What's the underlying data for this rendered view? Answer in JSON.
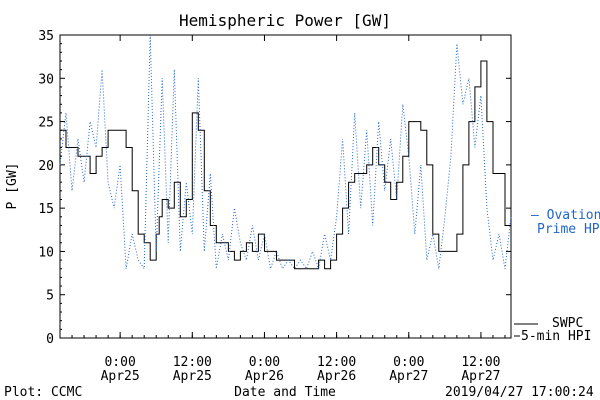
{
  "chart_data": {
    "type": "line",
    "title": "Hemispheric Power [GW]",
    "xlabel": "Date and Time",
    "ylabel": "P [GW]",
    "ylim": [
      0,
      35
    ],
    "yticks": [
      0,
      5,
      10,
      15,
      20,
      25,
      30,
      35
    ],
    "xlim": [
      "2019-04-24T14:00",
      "2019-04-27T17:00"
    ],
    "xticks": [
      {
        "t": "2019-04-25T00:00",
        "time": "0:00",
        "date": "Apr25"
      },
      {
        "t": "2019-04-25T12:00",
        "time": "12:00",
        "date": "Apr25"
      },
      {
        "t": "2019-04-26T00:00",
        "time": "0:00",
        "date": "Apr26"
      },
      {
        "t": "2019-04-26T12:00",
        "time": "12:00",
        "date": "Apr26"
      },
      {
        "t": "2019-04-27T00:00",
        "time": "0:00",
        "date": "Apr27"
      },
      {
        "t": "2019-04-27T12:00",
        "time": "12:00",
        "date": "Apr27"
      }
    ],
    "legend_placement": "right",
    "series": [
      {
        "name": "SWPC 5-min HPI",
        "legend_line1": "SWPC",
        "legend_line2": "5-min HPI",
        "color": "#000000",
        "style": "solid",
        "points": [
          [
            "2019-04-24T14:00",
            24
          ],
          [
            "2019-04-24T15:00",
            22
          ],
          [
            "2019-04-24T16:00",
            22
          ],
          [
            "2019-04-24T17:00",
            21
          ],
          [
            "2019-04-24T18:00",
            21
          ],
          [
            "2019-04-24T19:00",
            19
          ],
          [
            "2019-04-24T20:00",
            21
          ],
          [
            "2019-04-24T21:00",
            22
          ],
          [
            "2019-04-24T22:00",
            24
          ],
          [
            "2019-04-25T00:00",
            24
          ],
          [
            "2019-04-25T01:00",
            22
          ],
          [
            "2019-04-25T02:00",
            17
          ],
          [
            "2019-04-25T03:00",
            12
          ],
          [
            "2019-04-25T04:00",
            11
          ],
          [
            "2019-04-25T05:00",
            9
          ],
          [
            "2019-04-25T06:00",
            12
          ],
          [
            "2019-04-25T06:30",
            14
          ],
          [
            "2019-04-25T07:00",
            16
          ],
          [
            "2019-04-25T08:00",
            15
          ],
          [
            "2019-04-25T09:00",
            18
          ],
          [
            "2019-04-25T10:00",
            14
          ],
          [
            "2019-04-25T11:00",
            16
          ],
          [
            "2019-04-25T12:00",
            26
          ],
          [
            "2019-04-25T13:00",
            24
          ],
          [
            "2019-04-25T14:00",
            17
          ],
          [
            "2019-04-25T15:00",
            13
          ],
          [
            "2019-04-25T16:00",
            11
          ],
          [
            "2019-04-25T17:00",
            11
          ],
          [
            "2019-04-25T18:00",
            10
          ],
          [
            "2019-04-25T19:00",
            9
          ],
          [
            "2019-04-25T20:00",
            10
          ],
          [
            "2019-04-25T21:00",
            11
          ],
          [
            "2019-04-25T22:00",
            10
          ],
          [
            "2019-04-25T23:00",
            12
          ],
          [
            "2019-04-26T00:00",
            10
          ],
          [
            "2019-04-26T01:00",
            10
          ],
          [
            "2019-04-26T02:00",
            9
          ],
          [
            "2019-04-26T03:00",
            9
          ],
          [
            "2019-04-26T04:00",
            9
          ],
          [
            "2019-04-26T05:00",
            8
          ],
          [
            "2019-04-26T06:00",
            8
          ],
          [
            "2019-04-26T07:00",
            8
          ],
          [
            "2019-04-26T08:00",
            8
          ],
          [
            "2019-04-26T09:00",
            9
          ],
          [
            "2019-04-26T10:00",
            8
          ],
          [
            "2019-04-26T11:00",
            9
          ],
          [
            "2019-04-26T12:00",
            12
          ],
          [
            "2019-04-26T13:00",
            15
          ],
          [
            "2019-04-26T14:00",
            18
          ],
          [
            "2019-04-26T15:00",
            19
          ],
          [
            "2019-04-26T16:00",
            19
          ],
          [
            "2019-04-26T17:00",
            20
          ],
          [
            "2019-04-26T18:00",
            22
          ],
          [
            "2019-04-26T19:00",
            20
          ],
          [
            "2019-04-26T20:00",
            18
          ],
          [
            "2019-04-26T21:00",
            16
          ],
          [
            "2019-04-26T22:00",
            18
          ],
          [
            "2019-04-26T23:00",
            21
          ],
          [
            "2019-04-27T00:00",
            25
          ],
          [
            "2019-04-27T01:00",
            25
          ],
          [
            "2019-04-27T02:00",
            24
          ],
          [
            "2019-04-27T03:00",
            20
          ],
          [
            "2019-04-27T04:00",
            12
          ],
          [
            "2019-04-27T05:00",
            10
          ],
          [
            "2019-04-27T06:00",
            10
          ],
          [
            "2019-04-27T07:00",
            10
          ],
          [
            "2019-04-27T08:00",
            12
          ],
          [
            "2019-04-27T09:00",
            20
          ],
          [
            "2019-04-27T10:00",
            25
          ],
          [
            "2019-04-27T11:00",
            29
          ],
          [
            "2019-04-27T12:00",
            32
          ],
          [
            "2019-04-27T13:00",
            25
          ],
          [
            "2019-04-27T14:00",
            19
          ],
          [
            "2019-04-27T15:00",
            19
          ],
          [
            "2019-04-27T16:00",
            13
          ],
          [
            "2019-04-27T17:00",
            11
          ]
        ]
      },
      {
        "name": "Ovation Prime HPI",
        "legend_line1": "— Ovation",
        "legend_line2": "Prime HPI",
        "color": "#2266cc",
        "style": "dotted",
        "points": [
          [
            "2019-04-24T14:00",
            20
          ],
          [
            "2019-04-24T15:00",
            26
          ],
          [
            "2019-04-24T16:00",
            17
          ],
          [
            "2019-04-24T17:00",
            23
          ],
          [
            "2019-04-24T18:00",
            18
          ],
          [
            "2019-04-24T19:00",
            25
          ],
          [
            "2019-04-24T20:00",
            22
          ],
          [
            "2019-04-24T21:00",
            31
          ],
          [
            "2019-04-24T22:00",
            18
          ],
          [
            "2019-04-24T23:00",
            15
          ],
          [
            "2019-04-25T00:00",
            20
          ],
          [
            "2019-04-25T01:00",
            8
          ],
          [
            "2019-04-25T02:00",
            12
          ],
          [
            "2019-04-25T03:00",
            9
          ],
          [
            "2019-04-25T04:00",
            8
          ],
          [
            "2019-04-25T05:00",
            35
          ],
          [
            "2019-04-25T06:00",
            10
          ],
          [
            "2019-04-25T07:00",
            30
          ],
          [
            "2019-04-25T08:00",
            11
          ],
          [
            "2019-04-25T09:00",
            31
          ],
          [
            "2019-04-25T10:00",
            10
          ],
          [
            "2019-04-25T11:00",
            18
          ],
          [
            "2019-04-25T12:00",
            12
          ],
          [
            "2019-04-25T13:00",
            30
          ],
          [
            "2019-04-25T14:00",
            10
          ],
          [
            "2019-04-25T15:00",
            19
          ],
          [
            "2019-04-25T16:00",
            8
          ],
          [
            "2019-04-25T17:00",
            12
          ],
          [
            "2019-04-25T18:00",
            9
          ],
          [
            "2019-04-25T19:00",
            15
          ],
          [
            "2019-04-25T20:00",
            11
          ],
          [
            "2019-04-25T21:00",
            9
          ],
          [
            "2019-04-25T22:00",
            13
          ],
          [
            "2019-04-25T23:00",
            9
          ],
          [
            "2019-04-26T00:00",
            12
          ],
          [
            "2019-04-26T01:00",
            8
          ],
          [
            "2019-04-26T02:00",
            10
          ],
          [
            "2019-04-26T03:00",
            8
          ],
          [
            "2019-04-26T04:00",
            9
          ],
          [
            "2019-04-26T05:00",
            8
          ],
          [
            "2019-04-26T06:00",
            9
          ],
          [
            "2019-04-26T07:00",
            8
          ],
          [
            "2019-04-26T08:00",
            10
          ],
          [
            "2019-04-26T09:00",
            8
          ],
          [
            "2019-04-26T10:00",
            12
          ],
          [
            "2019-04-26T11:00",
            9
          ],
          [
            "2019-04-26T12:00",
            14
          ],
          [
            "2019-04-26T13:00",
            23
          ],
          [
            "2019-04-26T14:00",
            12
          ],
          [
            "2019-04-26T15:00",
            26
          ],
          [
            "2019-04-26T16:00",
            15
          ],
          [
            "2019-04-26T17:00",
            24
          ],
          [
            "2019-04-26T18:00",
            13
          ],
          [
            "2019-04-26T19:00",
            25
          ],
          [
            "2019-04-26T20:00",
            17
          ],
          [
            "2019-04-26T21:00",
            23
          ],
          [
            "2019-04-26T22:00",
            16
          ],
          [
            "2019-04-26T23:00",
            27
          ],
          [
            "2019-04-27T00:00",
            21
          ],
          [
            "2019-04-27T01:00",
            12
          ],
          [
            "2019-04-27T02:00",
            20
          ],
          [
            "2019-04-27T03:00",
            9
          ],
          [
            "2019-04-27T04:00",
            12
          ],
          [
            "2019-04-27T05:00",
            8
          ],
          [
            "2019-04-27T06:00",
            14
          ],
          [
            "2019-04-27T07:00",
            21
          ],
          [
            "2019-04-27T08:00",
            34
          ],
          [
            "2019-04-27T09:00",
            27
          ],
          [
            "2019-04-27T10:00",
            30
          ],
          [
            "2019-04-27T11:00",
            22
          ],
          [
            "2019-04-27T12:00",
            28
          ],
          [
            "2019-04-27T13:00",
            15
          ],
          [
            "2019-04-27T14:00",
            9
          ],
          [
            "2019-04-27T15:00",
            12
          ],
          [
            "2019-04-27T16:00",
            8
          ],
          [
            "2019-04-27T17:00",
            14
          ]
        ]
      }
    ]
  },
  "footer": {
    "credit": "Plot: CCMC",
    "timestamp": "2019/04/27 17:00:24"
  }
}
